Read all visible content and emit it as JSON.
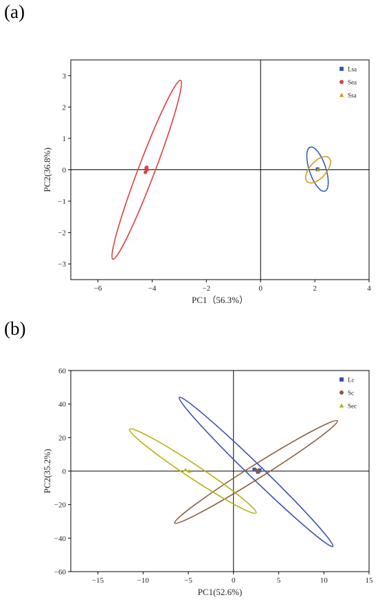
{
  "panels": {
    "a": {
      "label": "(a)"
    },
    "b": {
      "label": "(b)"
    }
  },
  "chart_data": [
    {
      "type": "scatter",
      "panel": "(a)",
      "xlabel": "PC1（56.3%）",
      "ylabel": "PC2(36.8%)",
      "xlim": [
        -7,
        4
      ],
      "ylim": [
        -3.5,
        3.5
      ],
      "xticks": [
        -6,
        -4,
        -2,
        0,
        2,
        4
      ],
      "xtick_labels": [
        "−6",
        "−4",
        "−2",
        "0",
        "2",
        "4"
      ],
      "yticks": [
        -3,
        -2,
        -1,
        0,
        1,
        2,
        3
      ],
      "ytick_labels": [
        "−3",
        "−2",
        "−1",
        "0",
        "1",
        "2",
        "3"
      ],
      "grid": false,
      "legend_position": "top-right",
      "series": [
        {
          "name": "Lsa",
          "color": "#2e5fb0",
          "marker": "square",
          "points": [
            [
              2.1,
              0.02
            ]
          ],
          "ellipse": [
            [
              1.83,
              0.72
            ],
            [
              2.37,
              -0.68
            ]
          ]
        },
        {
          "name": "Sea",
          "color": "#e03c3c",
          "marker": "circle",
          "points": [
            [
              -4.2,
              0.08
            ],
            [
              -4.25,
              -0.08
            ],
            [
              -4.18,
              0.0
            ],
            [
              -4.22,
              0.05
            ]
          ],
          "ellipse": [
            [
              -2.95,
              2.85
            ],
            [
              -5.45,
              -2.85
            ]
          ]
        },
        {
          "name": "Ssa",
          "color": "#d4991c",
          "marker": "triangle",
          "points": [
            [
              2.12,
              0.0
            ]
          ],
          "ellipse": [
            [
              2.52,
              0.38
            ],
            [
              1.72,
              -0.38
            ]
          ]
        }
      ]
    },
    {
      "type": "scatter",
      "panel": "(b)",
      "xlabel": "PC1(52.6%)",
      "ylabel": "PC2(35.2%)",
      "xlim": [
        -18,
        15
      ],
      "ylim": [
        -60,
        60
      ],
      "xticks": [
        -15,
        -10,
        -5,
        0,
        5,
        10,
        15
      ],
      "xtick_labels": [
        "−15",
        "−10",
        "−5",
        "0",
        "5",
        "10",
        "15"
      ],
      "yticks": [
        -60,
        -40,
        -20,
        0,
        20,
        40,
        60
      ],
      "ytick_labels": [
        "−60",
        "−40",
        "−20",
        "0",
        "20",
        "40",
        "60"
      ],
      "grid": false,
      "legend_position": "top-right",
      "series": [
        {
          "name": "Lc",
          "color": "#3a4fb0",
          "marker": "square",
          "points": [
            [
              2.3,
              1.0
            ],
            [
              2.7,
              -0.5
            ],
            [
              2.9,
              0.5
            ]
          ],
          "ellipse": [
            [
              -6.0,
              44.0
            ],
            [
              11.0,
              -45.0
            ]
          ]
        },
        {
          "name": "Sc",
          "color": "#8b5a3c",
          "marker": "circle",
          "points": [
            [
              2.5,
              0.5
            ],
            [
              2.8,
              -0.3
            ]
          ],
          "ellipse": [
            [
              11.5,
              30.0
            ],
            [
              -6.5,
              -31.0
            ]
          ]
        },
        {
          "name": "Sec",
          "color": "#b8b012",
          "marker": "triangle",
          "points": [
            [
              -5.3,
              0.8
            ],
            [
              -4.9,
              0.0
            ]
          ],
          "ellipse": [
            [
              -11.5,
              25.0
            ],
            [
              2.5,
              -25.0
            ]
          ]
        }
      ]
    }
  ]
}
